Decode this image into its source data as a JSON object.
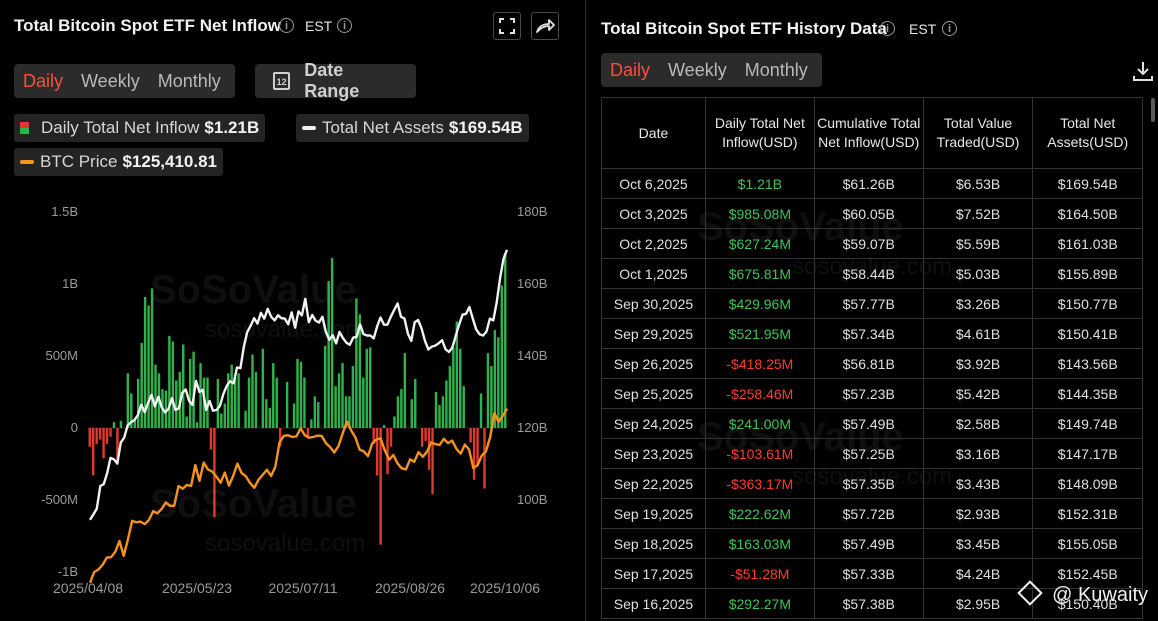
{
  "left": {
    "title": "Total Bitcoin Spot ETF Net Inflow",
    "tz": "EST",
    "tabs": [
      "Daily",
      "Weekly",
      "Monthly"
    ],
    "date_range_label": "Date Range",
    "date_icon_text": "12",
    "legend": {
      "inflow_label": "Daily Total Net Inflow",
      "inflow_value": "$1.21B",
      "assets_label": "Total Net Assets",
      "assets_value": "$169.54B",
      "btc_label": "BTC Price",
      "btc_value": "$125,410.81"
    },
    "watermark": "SoSoValue",
    "watermark_sub": "sosovalue.com"
  },
  "right": {
    "title": "Total Bitcoin Spot ETF History Data",
    "tz": "EST",
    "tabs": [
      "Daily",
      "Weekly",
      "Monthly"
    ],
    "headers": [
      "Date",
      "Daily Total Net Inflow(USD)",
      "Cumulative Total Net Inflow(USD)",
      "Total Value Traded(USD)",
      "Total Net Assets(USD)"
    ],
    "rows": [
      {
        "date": "Oct 6,2025",
        "inflow": "$1.21B",
        "cum": "$61.26B",
        "traded": "$6.53B",
        "assets": "$169.54B",
        "sign": "pos"
      },
      {
        "date": "Oct 3,2025",
        "inflow": "$985.08M",
        "cum": "$60.05B",
        "traded": "$7.52B",
        "assets": "$164.50B",
        "sign": "pos"
      },
      {
        "date": "Oct 2,2025",
        "inflow": "$627.24M",
        "cum": "$59.07B",
        "traded": "$5.59B",
        "assets": "$161.03B",
        "sign": "pos"
      },
      {
        "date": "Oct 1,2025",
        "inflow": "$675.81M",
        "cum": "$58.44B",
        "traded": "$5.03B",
        "assets": "$155.89B",
        "sign": "pos"
      },
      {
        "date": "Sep 30,2025",
        "inflow": "$429.96M",
        "cum": "$57.77B",
        "traded": "$3.26B",
        "assets": "$150.77B",
        "sign": "pos"
      },
      {
        "date": "Sep 29,2025",
        "inflow": "$521.95M",
        "cum": "$57.34B",
        "traded": "$4.61B",
        "assets": "$150.41B",
        "sign": "pos"
      },
      {
        "date": "Sep 26,2025",
        "inflow": "-$418.25M",
        "cum": "$56.81B",
        "traded": "$3.92B",
        "assets": "$143.56B",
        "sign": "neg"
      },
      {
        "date": "Sep 25,2025",
        "inflow": "-$258.46M",
        "cum": "$57.23B",
        "traded": "$5.42B",
        "assets": "$144.35B",
        "sign": "neg"
      },
      {
        "date": "Sep 24,2025",
        "inflow": "$241.00M",
        "cum": "$57.49B",
        "traded": "$2.58B",
        "assets": "$149.74B",
        "sign": "pos"
      },
      {
        "date": "Sep 23,2025",
        "inflow": "-$103.61M",
        "cum": "$57.25B",
        "traded": "$3.16B",
        "assets": "$147.17B",
        "sign": "neg"
      },
      {
        "date": "Sep 22,2025",
        "inflow": "-$363.17M",
        "cum": "$57.35B",
        "traded": "$3.43B",
        "assets": "$148.09B",
        "sign": "neg"
      },
      {
        "date": "Sep 19,2025",
        "inflow": "$222.62M",
        "cum": "$57.72B",
        "traded": "$2.93B",
        "assets": "$152.31B",
        "sign": "pos"
      },
      {
        "date": "Sep 18,2025",
        "inflow": "$163.03M",
        "cum": "$57.49B",
        "traded": "$3.45B",
        "assets": "$155.05B",
        "sign": "pos"
      },
      {
        "date": "Sep 17,2025",
        "inflow": "-$51.28M",
        "cum": "$57.33B",
        "traded": "$4.24B",
        "assets": "$152.45B",
        "sign": "neg"
      },
      {
        "date": "Sep 16,2025",
        "inflow": "$292.27M",
        "cum": "$57.38B",
        "traded": "$2.95B",
        "assets": "$150.40B",
        "sign": "pos"
      }
    ]
  },
  "footer_tag": "@ Kuwaity",
  "chart_data": {
    "type": "bar",
    "colors": {
      "positive": "#2fb24c",
      "negative": "#e03a2f",
      "assets_line": "#f2f2f2",
      "btc_line": "#f7931a"
    },
    "x_ticks": [
      "2025/04/08",
      "2025/05/23",
      "2025/07/11",
      "2025/08/26",
      "2025/10/06"
    ],
    "y_left": {
      "ticks": [
        "1.5B",
        "1B",
        "500M",
        "0",
        "-500M",
        "-1B"
      ],
      "range": [
        -1.0,
        1.5
      ],
      "unit": "B"
    },
    "y_right": {
      "ticks": [
        "180B",
        "160B",
        "140B",
        "120B",
        "100B"
      ],
      "range": [
        80,
        180
      ],
      "unit": "B"
    },
    "series": [
      {
        "name": "Daily Total Net Inflow",
        "kind": "bar",
        "values": [
          -0.13,
          -0.33,
          -0.11,
          -0.08,
          -0.21,
          -0.11,
          -0.06,
          0.04,
          -0.25,
          0.05,
          0.0,
          0.38,
          0.24,
          0.06,
          0.34,
          0.59,
          0.91,
          0.85,
          0.97,
          0.44,
          0.38,
          0.27,
          0.26,
          0.64,
          0.6,
          0.33,
          0.39,
          0.58,
          0.08,
          0.48,
          0.53,
          0.04,
          0.45,
          0.35,
          0.35,
          -0.15,
          -0.62,
          0.34,
          0.1,
          0.17,
          0.38,
          0.44,
          0.35,
          0.38,
          0.0,
          0.12,
          0.35,
          0.51,
          0.39,
          0.0,
          0.55,
          0.2,
          0.14,
          0.45,
          0.35,
          -0.13,
          0.0,
          0.32,
          0.0,
          0.17,
          0.48,
          0.46,
          0.35,
          -0.07,
          0.06,
          0.22,
          0.18,
          0.0,
          0.57,
          1.02,
          1.18,
          0.29,
          0.38,
          0.45,
          0.22,
          0.22,
          0.43,
          0.9,
          0.79,
          0.35,
          0.55,
          0.56,
          -0.11,
          -0.33,
          -0.81,
          0.02,
          -0.32,
          -0.13,
          0.08,
          0.22,
          0.27,
          0.52,
          0.0,
          0.2,
          0.34,
          0.0,
          -0.13,
          -0.09,
          -0.29,
          -0.46,
          0.25,
          0.16,
          0.22,
          0.33,
          0.43,
          0.56,
          0.74,
          0.55,
          0.29,
          0.0,
          -0.1,
          -0.36,
          -0.26,
          0.24,
          -0.42,
          0.52,
          0.43,
          0.68,
          0.63,
          0.99,
          1.21
        ]
      },
      {
        "name": "Total Net Assets",
        "kind": "line",
        "values": [
          94.5,
          96.0,
          97.6,
          103.9,
          104.4,
          107.4,
          111.7,
          111.3,
          110.1,
          116.0,
          117.3,
          120.7,
          121.6,
          122.2,
          123.6,
          126.5,
          124.4,
          127.0,
          129.2,
          126.0,
          128.7,
          125.7,
          124.3,
          125.4,
          128.3,
          125.0,
          125.5,
          129.8,
          130.7,
          127.5,
          126.4,
          133.1,
          130.0,
          130.6,
          125.0,
          127.5,
          124.8,
          125.0,
          126.1,
          129.4,
          131.7,
          133.0,
          132.4,
          136.8,
          136.6,
          142.5,
          146.6,
          148.4,
          150.5,
          149.0,
          152.0,
          150.4,
          153.1,
          150.9,
          149.9,
          151.3,
          150.5,
          150.4,
          148.8,
          152.1,
          147.9,
          152.4,
          151.3,
          155.9,
          149.4,
          151.4,
          149.8,
          149.3,
          150.9,
          146.7,
          144.5,
          145.8,
          143.5,
          146.7,
          145.0,
          143.7,
          143.1,
          145.1,
          145.3,
          148.8,
          146.1,
          145.7,
          145.7,
          144.9,
          148.2,
          150.7,
          148.7,
          148.7,
          150.9,
          152.8,
          154.6,
          150.9,
          150.4,
          146.2,
          144.2,
          149.4,
          150.0,
          147.7,
          144.2,
          141.8,
          142.6,
          142.9,
          143.5,
          144.4,
          141.9,
          141.1,
          142.3,
          145.6,
          148.7,
          151.5,
          151.7,
          153.6,
          150.4,
          147.4,
          146.0,
          145.7,
          146.8,
          150.4,
          149.9,
          154.9,
          161.9,
          167.1,
          169.5
        ]
      },
      {
        "name": "BTC Price",
        "kind": "line",
        "values": [
          77000,
          80000,
          80700,
          82000,
          84000,
          84100,
          85600,
          88600,
          84500,
          89000,
          94200,
          93800,
          94000,
          93300,
          94500,
          96900,
          96300,
          97500,
          99300,
          98400,
          98400,
          103900,
          103100,
          104200,
          103900,
          109700,
          105300,
          110400,
          108500,
          107900,
          106500,
          104800,
          107600,
          104000,
          106700,
          110100,
          107500,
          106600,
          104700,
          103400,
          105600,
          107000,
          108400,
          106700,
          109200,
          116000,
          117800,
          118000,
          117500,
          117700,
          119900,
          118000,
          117300,
          117500,
          117900,
          117800,
          115800,
          114700,
          113200,
          115000,
          118500,
          121800,
          119300,
          117400,
          114000,
          113500,
          112200,
          115700,
          116800,
          117100,
          113800,
          111200,
          112500,
          110200,
          108800,
          108500,
          111300,
          110600,
          113300,
          112000,
          113400,
          116000,
          115500,
          115300,
          117000,
          115800,
          116500,
          114200,
          112900,
          115400,
          114000,
          108900,
          109600,
          112300,
          113500,
          117500,
          124100,
          121700,
          123400,
          125400
        ]
      }
    ],
    "legend_position": "top-left"
  }
}
